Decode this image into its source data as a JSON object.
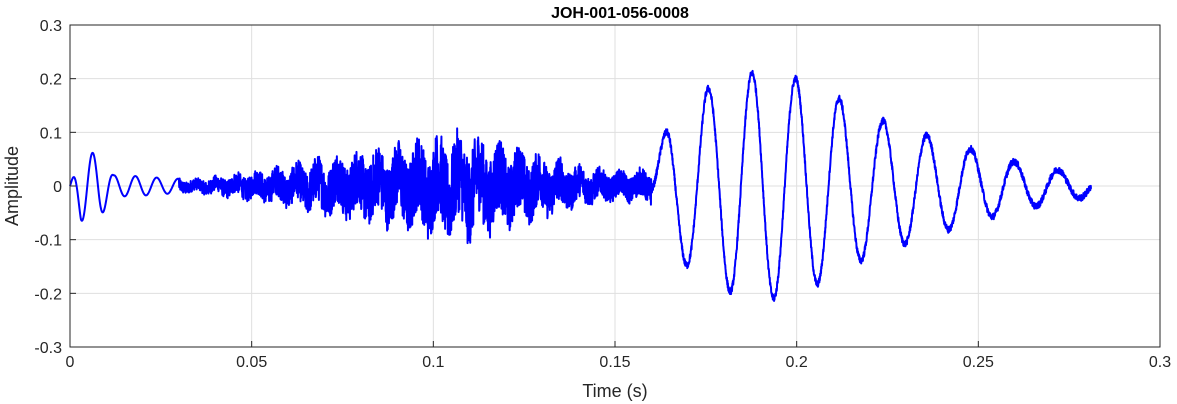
{
  "chart_data": {
    "type": "line",
    "title": "JOH-001-056-0008",
    "xlabel": "Time (s)",
    "ylabel": "Amplitude",
    "xlim": [
      0,
      0.3
    ],
    "ylim": [
      -0.3,
      0.3
    ],
    "xticks": [
      0,
      0.05,
      0.1,
      0.15,
      0.2,
      0.25,
      0.3
    ],
    "xtick_labels": [
      "0",
      "0.05",
      "0.1",
      "0.15",
      "0.2",
      "0.25",
      "0.3"
    ],
    "yticks": [
      -0.3,
      -0.2,
      -0.1,
      0,
      0.1,
      0.2,
      0.3
    ],
    "ytick_labels": [
      "-0.3",
      "-0.2",
      "-0.1",
      "0",
      "0.1",
      "0.2",
      "0.3"
    ],
    "grid": true,
    "series": [
      {
        "color": "#0000ff",
        "x_start": 0,
        "x_end": 0.281,
        "envelope": [
          [
            0.0,
            0.0
          ],
          [
            0.003,
            0.065
          ],
          [
            0.008,
            0.06
          ],
          [
            0.012,
            0.02
          ],
          [
            0.02,
            0.018
          ],
          [
            0.025,
            0.015
          ],
          [
            0.035,
            0.012
          ],
          [
            0.05,
            0.025
          ],
          [
            0.06,
            0.035
          ],
          [
            0.07,
            0.05
          ],
          [
            0.09,
            0.07
          ],
          [
            0.1,
            0.085
          ],
          [
            0.11,
            0.09
          ],
          [
            0.12,
            0.07
          ],
          [
            0.13,
            0.055
          ],
          [
            0.14,
            0.035
          ],
          [
            0.15,
            0.025
          ],
          [
            0.16,
            0.03
          ],
          [
            0.165,
            0.12
          ],
          [
            0.175,
            0.18
          ],
          [
            0.185,
            0.205
          ],
          [
            0.19,
            0.215
          ],
          [
            0.2,
            0.2
          ],
          [
            0.21,
            0.17
          ],
          [
            0.22,
            0.13
          ],
          [
            0.24,
            0.085
          ],
          [
            0.26,
            0.045
          ],
          [
            0.28,
            0.02
          ]
        ]
      }
    ]
  }
}
